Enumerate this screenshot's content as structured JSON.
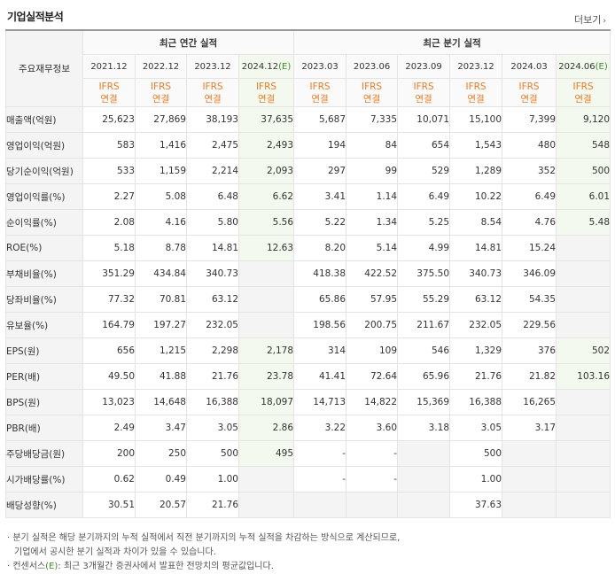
{
  "header": {
    "title": "기업실적분석",
    "more_label": "더보기"
  },
  "columns": {
    "item_header": "주요재무정보",
    "annual_group": "최근 연간 실적",
    "quarter_group": "최근 분기 실적",
    "periods": [
      {
        "label": "2021.12",
        "est": false
      },
      {
        "label": "2022.12",
        "est": false
      },
      {
        "label": "2023.12",
        "est": false
      },
      {
        "label": "2024.12",
        "est": true
      },
      {
        "label": "2023.03",
        "est": false
      },
      {
        "label": "2023.06",
        "est": false
      },
      {
        "label": "2023.09",
        "est": false
      },
      {
        "label": "2023.12",
        "est": false
      },
      {
        "label": "2024.03",
        "est": false
      },
      {
        "label": "2024.06",
        "est": true
      }
    ],
    "est_mark": "(E)",
    "ifrs_line1": "IFRS",
    "ifrs_line2": "연결"
  },
  "rows": [
    {
      "label": "매출액(억원)",
      "values": [
        "25,623",
        "27,869",
        "38,193",
        "37,635",
        "5,687",
        "7,335",
        "10,071",
        "15,100",
        "7,399",
        "9,120"
      ]
    },
    {
      "label": "영업이익(억원)",
      "values": [
        "583",
        "1,416",
        "2,475",
        "2,493",
        "194",
        "84",
        "654",
        "1,543",
        "480",
        "548"
      ]
    },
    {
      "label": "당기순이익(억원)",
      "values": [
        "533",
        "1,159",
        "2,214",
        "2,093",
        "297",
        "99",
        "529",
        "1,289",
        "352",
        "500"
      ]
    },
    {
      "label": "영업이익률(%)",
      "values": [
        "2.27",
        "5.08",
        "6.48",
        "6.62",
        "3.41",
        "1.14",
        "6.49",
        "10.22",
        "6.49",
        "6.01"
      ]
    },
    {
      "label": "순이익률(%)",
      "values": [
        "2.08",
        "4.16",
        "5.80",
        "5.56",
        "5.22",
        "1.34",
        "5.25",
        "8.54",
        "4.76",
        "5.48"
      ]
    },
    {
      "label": "ROE(%)",
      "values": [
        "5.18",
        "8.78",
        "14.81",
        "12.63",
        "8.20",
        "5.14",
        "4.99",
        "14.81",
        "15.24",
        ""
      ]
    },
    {
      "label": "부채비율(%)",
      "values": [
        "351.29",
        "434.84",
        "340.73",
        "",
        "418.38",
        "422.52",
        "375.50",
        "340.73",
        "346.09",
        ""
      ]
    },
    {
      "label": "당좌비율(%)",
      "values": [
        "77.32",
        "70.81",
        "63.12",
        "",
        "65.86",
        "57.95",
        "55.29",
        "63.12",
        "54.35",
        ""
      ]
    },
    {
      "label": "유보율(%)",
      "values": [
        "164.79",
        "197.27",
        "232.05",
        "",
        "198.56",
        "200.75",
        "211.67",
        "232.05",
        "229.56",
        ""
      ]
    },
    {
      "label": "EPS(원)",
      "values": [
        "656",
        "1,215",
        "2,298",
        "2,178",
        "314",
        "109",
        "546",
        "1,329",
        "376",
        "502"
      ]
    },
    {
      "label": "PER(배)",
      "values": [
        "49.50",
        "41.88",
        "21.76",
        "23.78",
        "41.41",
        "72.64",
        "65.96",
        "21.76",
        "21.82",
        "103.16"
      ]
    },
    {
      "label": "BPS(원)",
      "values": [
        "13,023",
        "14,648",
        "16,388",
        "18,097",
        "14,713",
        "14,822",
        "15,369",
        "16,388",
        "16,265",
        ""
      ]
    },
    {
      "label": "PBR(배)",
      "values": [
        "2.49",
        "3.47",
        "3.05",
        "2.86",
        "3.22",
        "3.60",
        "3.18",
        "3.05",
        "3.17",
        ""
      ]
    },
    {
      "label": "주당배당금(원)",
      "values": [
        "200",
        "250",
        "500",
        "495",
        "-",
        "-",
        "",
        "500",
        "",
        ""
      ]
    },
    {
      "label": "시가배당률(%)",
      "values": [
        "0.62",
        "0.49",
        "1.00",
        "",
        "-",
        "-",
        "",
        "1.00",
        "",
        ""
      ]
    },
    {
      "label": "배당성향(%)",
      "values": [
        "30.51",
        "20.57",
        "21.76",
        "",
        "",
        "",
        "",
        "37.63",
        "",
        ""
      ]
    }
  ],
  "footnotes": {
    "line1": "· 분기 실적은 해당 분기까지의 누적 실적에서 직전 분기까지의 누적 실적을 차감하는 방식으로 계산되므로,",
    "line2": "기업에서 공시한 분기 실적과 차이가 있을 수 있습니다.",
    "line3_pre": "· 컨센서스",
    "line3_mark": "(E)",
    "line3_post": ": 최근 3개월간 증권사에서 발표한 전망치의 평균값입니다."
  }
}
